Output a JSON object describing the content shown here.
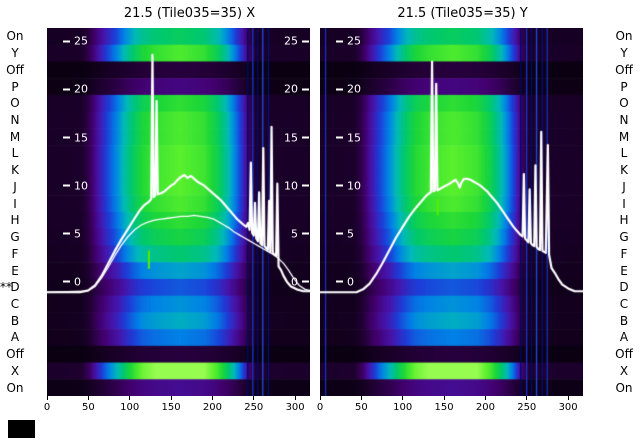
{
  "figure": {
    "background": "#ffffff",
    "text_color": "#000000",
    "line_color": "#ffffff",
    "corner_marker_color": "#000000",
    "row_labels": [
      "On",
      "Y",
      "Off",
      "P",
      "O",
      "N",
      "M",
      "L",
      "K",
      "J",
      "I",
      "H",
      "G",
      "F",
      "E",
      "D",
      "C",
      "B",
      "A",
      "Off",
      "X",
      "On"
    ],
    "row_marker": {
      "text": "**",
      "row_label": "D",
      "row_index": 15
    },
    "colormap": [
      [
        0,
        8,
        0,
        14
      ],
      [
        0.12,
        35,
        0,
        55
      ],
      [
        0.22,
        66,
        0,
        110
      ],
      [
        0.32,
        70,
        20,
        170
      ],
      [
        0.42,
        30,
        60,
        215
      ],
      [
        0.52,
        0,
        130,
        230
      ],
      [
        0.62,
        0,
        185,
        185
      ],
      [
        0.72,
        0,
        200,
        110
      ],
      [
        0.82,
        30,
        215,
        55
      ],
      [
        0.92,
        90,
        240,
        45
      ],
      [
        1,
        150,
        252,
        80
      ]
    ]
  },
  "chart_data": [
    {
      "id": "x",
      "type": "heatmap",
      "title": "21.5 (Tile035=35) X",
      "x_range": [
        0,
        318
      ],
      "y_range": [
        -11.9,
        26.4
      ],
      "x_ticks": [
        0,
        50,
        100,
        150,
        200,
        250,
        300
      ],
      "y_ticks": [
        25,
        20,
        15,
        10,
        5,
        0
      ],
      "y_tick_sides": [
        "left",
        "right"
      ],
      "rows": [
        0.75,
        0.9,
        0.13,
        0.25,
        0.85,
        0.9,
        0.9,
        0.92,
        0.92,
        0.92,
        0.9,
        0.85,
        0.8,
        0.72,
        0.58,
        0.46,
        0.55,
        0.6,
        0.52,
        0.13,
        1.05,
        0.28
      ],
      "col_profile": [
        [
          0,
          0.08
        ],
        [
          40,
          0.09
        ],
        [
          50,
          0.18
        ],
        [
          60,
          0.33
        ],
        [
          70,
          0.45
        ],
        [
          85,
          0.6
        ],
        [
          95,
          0.72
        ],
        [
          105,
          0.82
        ],
        [
          115,
          0.9
        ],
        [
          130,
          0.95
        ],
        [
          160,
          1.0
        ],
        [
          190,
          0.95
        ],
        [
          205,
          0.85
        ],
        [
          215,
          0.74
        ],
        [
          225,
          0.6
        ],
        [
          235,
          0.44
        ],
        [
          242,
          0.28
        ],
        [
          248,
          0.14
        ],
        [
          255,
          0.09
        ],
        [
          318,
          0.08
        ]
      ],
      "artifacts": [
        {
          "x": 122,
          "r0": 13.3,
          "r1": 14.4,
          "color": "#55ee00",
          "w": 2
        },
        {
          "x": 242,
          "color": "#000a66",
          "w": 1.4
        },
        {
          "x": 248,
          "color": "#1535cc",
          "w": 1.4
        },
        {
          "x": 254,
          "color": "#000a77",
          "w": 1.2
        },
        {
          "x": 260,
          "color": "#1d49dd",
          "w": 1.4
        },
        {
          "x": 267,
          "color": "#001088",
          "w": 1.2
        }
      ],
      "lines": [
        {
          "name": "beam-profile-x-main",
          "width": 2.2,
          "points": [
            [
              0,
              -1.1
            ],
            [
              40,
              -1.1
            ],
            [
              50,
              -0.9
            ],
            [
              58,
              -0.4
            ],
            [
              66,
              0.6
            ],
            [
              74,
              1.9
            ],
            [
              82,
              3.2
            ],
            [
              90,
              4.4
            ],
            [
              98,
              5.5
            ],
            [
              106,
              6.6
            ],
            [
              112,
              7.4
            ],
            [
              118,
              8.0
            ],
            [
              123,
              8.3
            ],
            [
              126,
              8.6
            ],
            [
              127.5,
              23.6
            ],
            [
              129,
              8.8
            ],
            [
              131,
              9.0
            ],
            [
              132.5,
              18.8
            ],
            [
              134,
              9.1
            ],
            [
              138,
              9.2
            ],
            [
              142,
              9.4
            ],
            [
              146,
              9.7
            ],
            [
              150,
              10.0
            ],
            [
              154,
              10.2
            ],
            [
              158,
              10.6
            ],
            [
              162,
              10.9
            ],
            [
              166,
              11.1
            ],
            [
              170,
              10.8
            ],
            [
              174,
              11.0
            ],
            [
              178,
              10.7
            ],
            [
              182,
              10.4
            ],
            [
              186,
              10.2
            ],
            [
              190,
              10.0
            ],
            [
              194,
              9.7
            ],
            [
              198,
              9.4
            ],
            [
              202,
              9.1
            ],
            [
              206,
              8.8
            ],
            [
              210,
              8.5
            ],
            [
              214,
              8.1
            ],
            [
              218,
              7.7
            ],
            [
              222,
              7.3
            ],
            [
              226,
              6.9
            ],
            [
              230,
              6.5
            ],
            [
              234,
              6.2
            ],
            [
              238,
              5.9
            ],
            [
              241,
              5.7
            ],
            [
              243,
              6.1
            ],
            [
              245,
              5.4
            ],
            [
              246.5,
              12.4
            ],
            [
              248,
              5.1
            ],
            [
              250,
              4.8
            ],
            [
              251.5,
              8.2
            ],
            [
              253,
              4.5
            ],
            [
              255,
              4.2
            ],
            [
              256.5,
              9.3
            ],
            [
              258,
              4.0
            ],
            [
              260,
              3.8
            ],
            [
              261.5,
              13.9
            ],
            [
              263,
              3.7
            ],
            [
              265,
              3.5
            ],
            [
              267,
              3.3
            ],
            [
              268.5,
              8.4
            ],
            [
              270,
              3.1
            ],
            [
              271.5,
              16.1
            ],
            [
              273,
              3.0
            ],
            [
              275,
              2.8
            ],
            [
              277,
              2.7
            ],
            [
              278.5,
              10.2
            ],
            [
              280,
              1.6
            ],
            [
              283,
              1.2
            ],
            [
              286,
              0.6
            ],
            [
              290,
              0.0
            ],
            [
              295,
              -0.5
            ],
            [
              302,
              -0.8
            ],
            [
              310,
              -1.0
            ],
            [
              318,
              -1.0
            ]
          ]
        },
        {
          "name": "beam-profile-x-secondary",
          "width": 1.3,
          "points": [
            [
              0,
              -1.1
            ],
            [
              48,
              -1.0
            ],
            [
              58,
              -0.5
            ],
            [
              66,
              0.4
            ],
            [
              74,
              1.5
            ],
            [
              82,
              2.7
            ],
            [
              90,
              3.8
            ],
            [
              98,
              4.7
            ],
            [
              106,
              5.4
            ],
            [
              114,
              5.9
            ],
            [
              122,
              6.2
            ],
            [
              130,
              6.4
            ],
            [
              138,
              6.5
            ],
            [
              146,
              6.6
            ],
            [
              154,
              6.7
            ],
            [
              162,
              6.8
            ],
            [
              170,
              6.8
            ],
            [
              178,
              6.9
            ],
            [
              186,
              6.8
            ],
            [
              194,
              6.7
            ],
            [
              202,
              6.5
            ],
            [
              208,
              6.2
            ],
            [
              214,
              5.9
            ],
            [
              220,
              5.6
            ],
            [
              226,
              5.2
            ],
            [
              232,
              4.9
            ],
            [
              238,
              4.6
            ],
            [
              244,
              4.3
            ],
            [
              250,
              4.0
            ],
            [
              256,
              3.7
            ],
            [
              262,
              3.4
            ],
            [
              268,
              3.1
            ],
            [
              274,
              2.8
            ],
            [
              280,
              2.4
            ],
            [
              286,
              1.9
            ],
            [
              292,
              1.2
            ],
            [
              298,
              0.4
            ],
            [
              305,
              -0.4
            ],
            [
              312,
              -0.8
            ],
            [
              318,
              -0.9
            ]
          ]
        }
      ]
    },
    {
      "id": "y",
      "type": "heatmap",
      "title": "21.5 (Tile035=35) Y",
      "x_range": [
        0,
        318
      ],
      "y_range": [
        -11.9,
        26.4
      ],
      "x_ticks": [
        0,
        50,
        100,
        150,
        200,
        250,
        300
      ],
      "y_ticks": [
        25,
        20,
        15,
        10,
        5,
        0
      ],
      "y_tick_sides": [
        "left"
      ],
      "rows": [
        0.75,
        0.9,
        0.13,
        0.25,
        0.85,
        0.9,
        0.9,
        0.92,
        0.92,
        0.92,
        0.9,
        0.85,
        0.8,
        0.72,
        0.58,
        0.46,
        0.55,
        0.6,
        0.52,
        0.13,
        1.05,
        0.28
      ],
      "col_profile": [
        [
          0,
          0.08
        ],
        [
          40,
          0.09
        ],
        [
          50,
          0.18
        ],
        [
          60,
          0.33
        ],
        [
          70,
          0.45
        ],
        [
          85,
          0.6
        ],
        [
          95,
          0.72
        ],
        [
          105,
          0.82
        ],
        [
          115,
          0.9
        ],
        [
          130,
          0.95
        ],
        [
          160,
          1.0
        ],
        [
          190,
          0.95
        ],
        [
          205,
          0.85
        ],
        [
          215,
          0.74
        ],
        [
          225,
          0.6
        ],
        [
          235,
          0.44
        ],
        [
          242,
          0.28
        ],
        [
          248,
          0.14
        ],
        [
          255,
          0.09
        ],
        [
          318,
          0.08
        ]
      ],
      "artifacts": [
        {
          "x": 141,
          "r0": 10.2,
          "r1": 11.2,
          "color": "#55ee00",
          "w": 2
        },
        {
          "x": 6,
          "color": "#1535cc",
          "w": 1.2
        },
        {
          "x": 242,
          "color": "#000a66",
          "w": 1.4
        },
        {
          "x": 249,
          "color": "#1535cc",
          "w": 1.4
        },
        {
          "x": 255,
          "color": "#000a77",
          "w": 1.2
        },
        {
          "x": 261,
          "color": "#1d49dd",
          "w": 1.4
        },
        {
          "x": 268,
          "color": "#001088",
          "w": 1.2
        },
        {
          "x": 274,
          "color": "#1535cc",
          "w": 1.2
        }
      ],
      "lines": [
        {
          "name": "beam-profile-y-main",
          "width": 2.2,
          "points": [
            [
              0,
              -1.1
            ],
            [
              44,
              -1.1
            ],
            [
              52,
              -0.8
            ],
            [
              60,
              -0.2
            ],
            [
              68,
              0.8
            ],
            [
              76,
              2.0
            ],
            [
              84,
              3.3
            ],
            [
              92,
              4.6
            ],
            [
              100,
              5.7
            ],
            [
              108,
              6.8
            ],
            [
              116,
              7.7
            ],
            [
              122,
              8.3
            ],
            [
              128,
              8.9
            ],
            [
              132,
              9.2
            ],
            [
              134,
              9.3
            ],
            [
              135.5,
              22.9
            ],
            [
              137,
              9.4
            ],
            [
              139,
              9.5
            ],
            [
              140.5,
              20.6
            ],
            [
              142,
              9.5
            ],
            [
              146,
              9.7
            ],
            [
              150,
              9.9
            ],
            [
              155,
              10.1
            ],
            [
              160,
              10.4
            ],
            [
              164,
              10.6
            ],
            [
              167,
              10.2
            ],
            [
              169,
              9.8
            ],
            [
              171,
              10.3
            ],
            [
              174,
              10.7
            ],
            [
              178,
              10.7
            ],
            [
              182,
              10.6
            ],
            [
              186,
              10.4
            ],
            [
              190,
              10.2
            ],
            [
              194,
              10.0
            ],
            [
              198,
              9.7
            ],
            [
              202,
              9.4
            ],
            [
              206,
              9.0
            ],
            [
              210,
              8.6
            ],
            [
              214,
              8.2
            ],
            [
              218,
              7.7
            ],
            [
              222,
              7.2
            ],
            [
              226,
              6.7
            ],
            [
              230,
              6.2
            ],
            [
              234,
              5.7
            ],
            [
              238,
              5.3
            ],
            [
              242,
              4.9
            ],
            [
              245,
              4.7
            ],
            [
              246.5,
              11.2
            ],
            [
              248,
              4.5
            ],
            [
              250,
              4.3
            ],
            [
              252,
              4.1
            ],
            [
              253.5,
              9.6
            ],
            [
              255,
              4.0
            ],
            [
              257,
              3.8
            ],
            [
              259,
              3.7
            ],
            [
              260.5,
              12.1
            ],
            [
              262,
              3.6
            ],
            [
              264,
              3.4
            ],
            [
              266,
              3.3
            ],
            [
              267.5,
              15.6
            ],
            [
              269,
              3.2
            ],
            [
              271,
              3.1
            ],
            [
              273,
              3.0
            ],
            [
              275.5,
              14.2
            ],
            [
              277,
              2.8
            ],
            [
              280,
              1.4
            ],
            [
              284,
              0.9
            ],
            [
              288,
              0.3
            ],
            [
              293,
              -0.3
            ],
            [
              300,
              -0.7
            ],
            [
              308,
              -1.0
            ],
            [
              318,
              -1.0
            ]
          ]
        }
      ]
    }
  ]
}
